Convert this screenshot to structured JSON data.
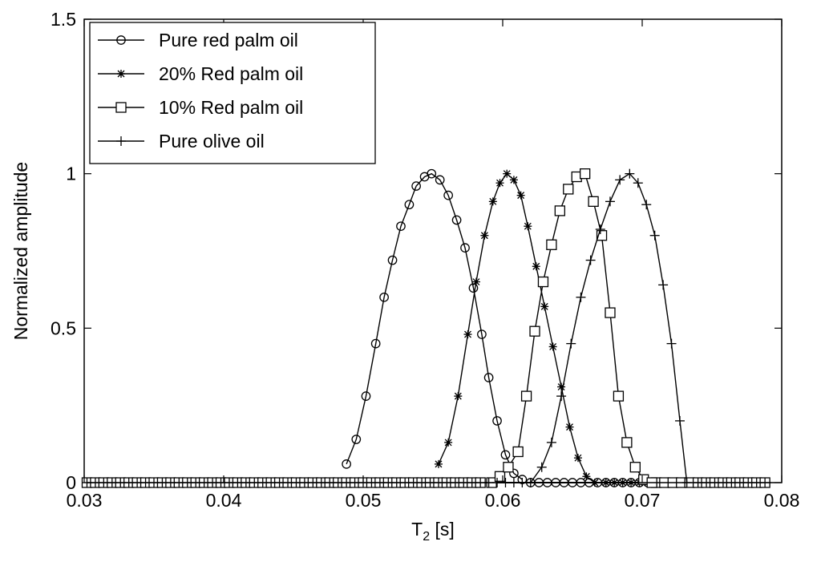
{
  "chart_data": {
    "type": "line",
    "title": "",
    "xlabel": "T",
    "xlabel_sub": "2",
    "xlabel_unit": " [s]",
    "ylabel": "Normalized amplitude",
    "xlim": [
      0.03,
      0.08
    ],
    "ylim": [
      0,
      1.5
    ],
    "x_ticks": [
      0.03,
      0.04,
      0.05,
      0.06,
      0.07,
      0.08
    ],
    "x_tick_labels": [
      "0.03",
      "0.04",
      "0.05",
      "0.06",
      "0.07",
      "0.08"
    ],
    "y_ticks": [
      0,
      0.5,
      1,
      1.5
    ],
    "y_tick_labels": [
      "0",
      "0.5",
      "1",
      "1.5"
    ],
    "grid": false,
    "legend_position": "top-left",
    "series": [
      {
        "name": "Pure red palm oil",
        "marker": "circle",
        "x": [
          0.0488,
          0.0495,
          0.0502,
          0.0509,
          0.0515,
          0.0521,
          0.0527,
          0.0533,
          0.0538,
          0.0544,
          0.0549,
          0.0555,
          0.0561,
          0.0567,
          0.0573,
          0.0579,
          0.0585,
          0.059,
          0.0596,
          0.0602,
          0.0608,
          0.0614
        ],
        "y": [
          0.06,
          0.14,
          0.28,
          0.45,
          0.6,
          0.72,
          0.83,
          0.9,
          0.96,
          0.99,
          1.0,
          0.98,
          0.93,
          0.85,
          0.76,
          0.63,
          0.48,
          0.34,
          0.2,
          0.09,
          0.03,
          0.01
        ]
      },
      {
        "name": "20% Red palm oil",
        "marker": "star",
        "x": [
          0.0554,
          0.0561,
          0.0568,
          0.0575,
          0.0581,
          0.0587,
          0.0593,
          0.0598,
          0.0603,
          0.0608,
          0.0613,
          0.0618,
          0.0624,
          0.063,
          0.0636,
          0.0642,
          0.0648,
          0.0654,
          0.066,
          0.0666
        ],
        "y": [
          0.06,
          0.13,
          0.28,
          0.48,
          0.65,
          0.8,
          0.91,
          0.97,
          1.0,
          0.98,
          0.93,
          0.83,
          0.7,
          0.57,
          0.44,
          0.31,
          0.18,
          0.08,
          0.02,
          0.0
        ]
      },
      {
        "name": "10% Red palm oil",
        "marker": "square",
        "x": [
          0.0592,
          0.0598,
          0.0604,
          0.0611,
          0.0617,
          0.0623,
          0.0629,
          0.0635,
          0.0641,
          0.0647,
          0.0653,
          0.0659,
          0.0665,
          0.0671,
          0.0677,
          0.0683,
          0.0689,
          0.0695,
          0.0701,
          0.0707
        ],
        "y": [
          0.0,
          0.02,
          0.05,
          0.1,
          0.28,
          0.49,
          0.65,
          0.77,
          0.88,
          0.95,
          0.99,
          1.0,
          0.91,
          0.8,
          0.55,
          0.28,
          0.13,
          0.05,
          0.01,
          0.0
        ]
      },
      {
        "name": "Pure olive oil",
        "marker": "plus",
        "x": [
          0.062,
          0.0628,
          0.0635,
          0.0642,
          0.0649,
          0.0656,
          0.0663,
          0.067,
          0.0677,
          0.0684,
          0.0691,
          0.0697,
          0.0703,
          0.0709,
          0.0715,
          0.0721,
          0.0727,
          0.0732
        ],
        "y": [
          0.0,
          0.05,
          0.13,
          0.28,
          0.45,
          0.6,
          0.72,
          0.82,
          0.91,
          0.98,
          1.0,
          0.97,
          0.9,
          0.8,
          0.64,
          0.45,
          0.2,
          0.0
        ]
      }
    ]
  }
}
